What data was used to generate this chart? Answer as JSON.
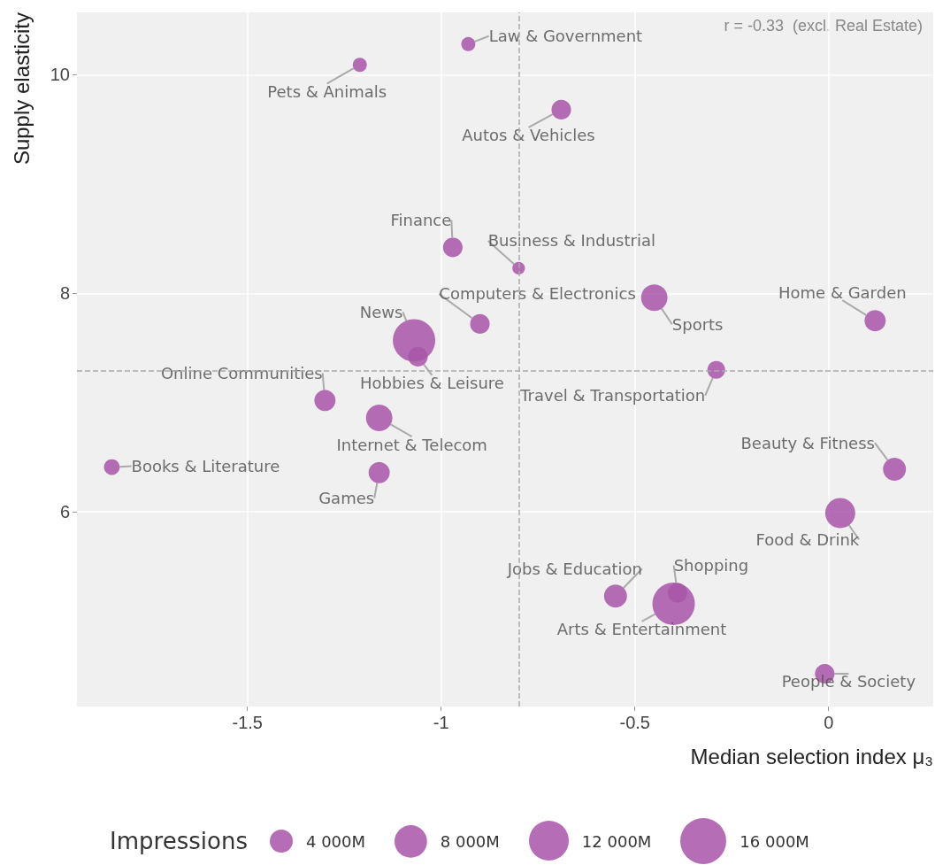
{
  "chart_data": {
    "type": "bubble",
    "xlabel": "Median selection index μ₃",
    "ylabel": "Supply elasticity",
    "legend_title": "Impressions",
    "annotations": [
      "r = -0.33  (excl. Real Estate)"
    ],
    "series": [
      {
        "name": "Law & Government",
        "color": "#a855a8",
        "x": [
          -0.93
        ],
        "values": [
          10.28
        ],
        "sizes": [
          1500
        ]
      },
      {
        "name": "Pets & Animals",
        "color": "#a855a8",
        "x": [
          -1.21
        ],
        "values": [
          10.09
        ],
        "sizes": [
          1500
        ]
      },
      {
        "name": "Autos & Vehicles",
        "color": "#a855a8",
        "x": [
          -0.69
        ],
        "values": [
          9.68
        ],
        "sizes": [
          2900
        ]
      },
      {
        "name": "Finance",
        "color": "#a855a8",
        "x": [
          -0.97
        ],
        "values": [
          8.42
        ],
        "sizes": [
          2900
        ]
      },
      {
        "name": "Business & Industrial",
        "color": "#a855a8",
        "x": [
          -0.8
        ],
        "values": [
          8.23
        ],
        "sizes": [
          1200
        ]
      },
      {
        "name": "Computers & Electronics",
        "color": "#a855a8",
        "x": [
          -0.9
        ],
        "values": [
          7.72
        ],
        "sizes": [
          2900
        ]
      },
      {
        "name": "Sports",
        "color": "#a855a8",
        "x": [
          -0.45
        ],
        "values": [
          7.96
        ],
        "sizes": [
          5300
        ]
      },
      {
        "name": "Home & Garden",
        "color": "#a855a8",
        "x": [
          0.12
        ],
        "values": [
          7.75
        ],
        "sizes": [
          3400
        ]
      },
      {
        "name": "News",
        "color": "#a855a8",
        "x": [
          -1.07
        ],
        "values": [
          7.57
        ],
        "sizes": [
          13600
        ]
      },
      {
        "name": "Hobbies & Leisure",
        "color": "#a855a8",
        "x": [
          -1.06
        ],
        "values": [
          7.42
        ],
        "sizes": [
          2900
        ]
      },
      {
        "name": "Travel & Transportation",
        "color": "#a855a8",
        "x": [
          -0.29
        ],
        "values": [
          7.3
        ],
        "sizes": [
          2400
        ]
      },
      {
        "name": "Online Communities",
        "color": "#a855a8",
        "x": [
          -1.3
        ],
        "values": [
          7.02
        ],
        "sizes": [
          3400
        ]
      },
      {
        "name": "Internet & Telecom",
        "color": "#a855a8",
        "x": [
          -1.16
        ],
        "values": [
          6.86
        ],
        "sizes": [
          5300
        ]
      },
      {
        "name": "Books & Literature",
        "color": "#a855a8",
        "x": [
          -1.85
        ],
        "values": [
          6.41
        ],
        "sizes": [
          1900
        ]
      },
      {
        "name": "Games",
        "color": "#a855a8",
        "x": [
          -1.16
        ],
        "values": [
          6.36
        ],
        "sizes": [
          3400
        ]
      },
      {
        "name": "Beauty & Fitness",
        "color": "#a855a8",
        "x": [
          0.17
        ],
        "values": [
          6.39
        ],
        "sizes": [
          4000
        ]
      },
      {
        "name": "Food & Drink",
        "color": "#a855a8",
        "x": [
          0.03
        ],
        "values": [
          5.99
        ],
        "sizes": [
          6800
        ]
      },
      {
        "name": "Jobs & Education",
        "color": "#a855a8",
        "x": [
          -0.55
        ],
        "values": [
          5.23
        ],
        "sizes": [
          4000
        ]
      },
      {
        "name": "Shopping",
        "color": "#a855a8",
        "x": [
          -0.39
        ],
        "values": [
          5.26
        ],
        "sizes": [
          2900
        ]
      },
      {
        "name": "Arts & Entertainment",
        "color": "#a855a8",
        "x": [
          -0.4
        ],
        "values": [
          5.16
        ],
        "sizes": [
          13600
        ]
      },
      {
        "name": "People & Society",
        "color": "#a855a8",
        "x": [
          -0.01
        ],
        "values": [
          4.52
        ],
        "sizes": [
          2900
        ]
      }
    ],
    "size_legend": [
      {
        "value": 4000,
        "label": "4 000M"
      },
      {
        "value": 8000,
        "label": "8 000M"
      },
      {
        "value": 12000,
        "label": "12 000M"
      },
      {
        "value": 16000,
        "label": "16 000M"
      }
    ],
    "xlim": [
      -1.94,
      0.27
    ],
    "ylim": [
      4.22,
      10.57
    ],
    "xticks": [
      -1.5,
      -1.0,
      -0.5,
      0.0
    ],
    "yticks": [
      6,
      8,
      10
    ],
    "ref_lines": [
      {
        "axis": "x",
        "value": -0.8,
        "color": "#aaaaaa",
        "line_style": "dashed"
      },
      {
        "axis": "y",
        "value": 7.29,
        "color": "#aaaaaa",
        "line_style": "dashed"
      }
    ],
    "grid": true,
    "marker": "circle"
  }
}
